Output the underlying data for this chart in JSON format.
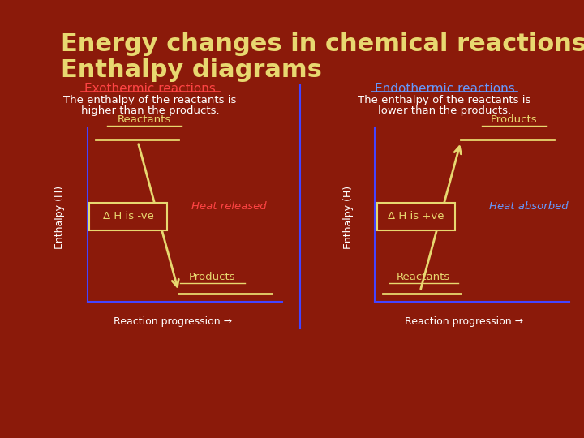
{
  "background_color": "#8B1A0A",
  "title_line1": "Energy changes in chemical reactions –",
  "title_line2": "Enthalpy diagrams",
  "title_color": "#E8D870",
  "title_fontsize": 22,
  "exo_heading": "Exothermic reactions",
  "exo_heading_color": "#FF4444",
  "exo_desc1": "The enthalpy of the reactants is",
  "exo_desc2": "higher than the products.",
  "exo_desc_color": "#FFFFFF",
  "endo_heading": "Endothermic reactions",
  "endo_heading_color": "#6699FF",
  "endo_desc1": "The enthalpy of the reactants is",
  "endo_desc2": "lower than the products.",
  "endo_desc_color": "#FFFFFF",
  "axis_color": "#4444FF",
  "ylabel": "Enthalpy (H)",
  "xlabel": "Reaction progression →",
  "label_color": "#FFFFFF",
  "exo_reactants_label": "Reactants",
  "exo_products_label": "Products",
  "endo_reactants_label": "Reactants",
  "endo_products_label": "Products",
  "reactant_product_color": "#E8D870",
  "delta_h_box_edgecolor": "#E8D870",
  "delta_h_exo_text": "Δ H is -ve",
  "delta_h_endo_text": "Δ H is +ve",
  "delta_h_text_color": "#E8D870",
  "heat_released_text": "Heat released",
  "heat_released_color": "#FF4444",
  "heat_absorbed_text": "Heat absorbed",
  "heat_absorbed_color": "#6699FF",
  "arrow_color": "#E8D870",
  "divider_color": "#4444FF"
}
